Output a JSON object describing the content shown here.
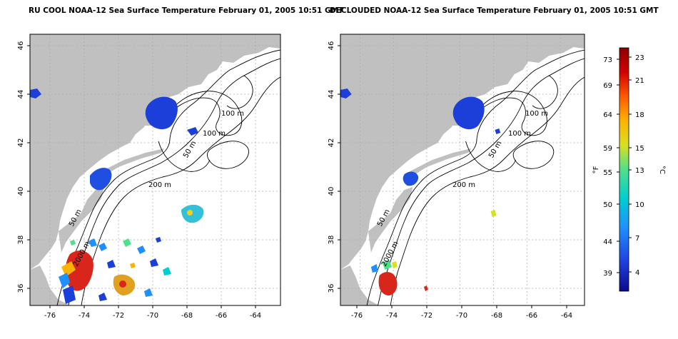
{
  "panels": [
    {
      "id": "left",
      "title": "RU COOL NOAA-12 Sea Surface Temperature February 01, 2005 10:51 GMT",
      "isobaths": [
        "100 m",
        "100 m",
        "50 m",
        "200 m",
        "50 m",
        "2000 m"
      ]
    },
    {
      "id": "right",
      "title": "DECLOUDED NOAA-12 Sea Surface Temperature February 01, 2005 10:51 GMT",
      "isobaths": [
        "100 m",
        "100 m",
        "50 m",
        "200 m",
        "50 m",
        "2000 m"
      ]
    }
  ],
  "axes": {
    "x_ticks": [
      "-76",
      "-74",
      "-72",
      "-70",
      "-68",
      "-66",
      "-64"
    ],
    "y_ticks": [
      "36",
      "38",
      "40",
      "42",
      "44",
      "46"
    ]
  },
  "colorbar": {
    "f_label": "°F",
    "c_label": "°C",
    "f_ticks": [
      "73",
      "69",
      "64",
      "59",
      "55",
      "50",
      "44",
      "39"
    ],
    "c_ticks": [
      "23",
      "21",
      "18",
      "15",
      "13",
      "10",
      "7",
      "4"
    ],
    "colors": [
      "#0b0a8c",
      "#1f3fe0",
      "#1e90ff",
      "#00ced1",
      "#4fe08a",
      "#d8e020",
      "#ffb300",
      "#ff5a00",
      "#d40000",
      "#8b0000"
    ]
  },
  "colors": {
    "land": "#c0c0c0",
    "ocean": "#ffffff",
    "grid": "#aaaaaa",
    "warm": "#d8261c",
    "cool": "#1c3fd9"
  }
}
